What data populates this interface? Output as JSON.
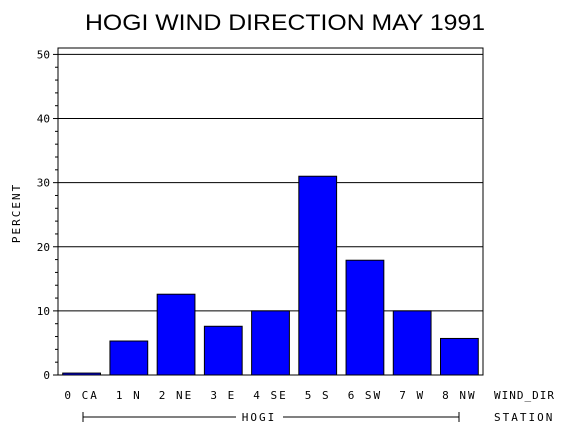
{
  "chart_data": {
    "type": "bar",
    "title": "HOGI WIND DIRECTION MAY 1991",
    "ylabel": "PERCENT",
    "xlabel": "WIND_DIR",
    "group_label": "STATION",
    "group_name": "HOGI",
    "ylim": [
      0,
      50
    ],
    "yticks": [
      "0",
      "10",
      "20",
      "30",
      "40",
      "50"
    ],
    "grid": true,
    "bar_color": "#0000ff",
    "categories": [
      "0 CA",
      "1 N",
      "2 NE",
      "3 E",
      "4 SE",
      "5 S",
      "6 SW",
      "7 W",
      "8 NW"
    ],
    "values": [
      0.3,
      5.3,
      12.6,
      7.6,
      10.0,
      31.0,
      17.9,
      10.0,
      5.7
    ]
  }
}
